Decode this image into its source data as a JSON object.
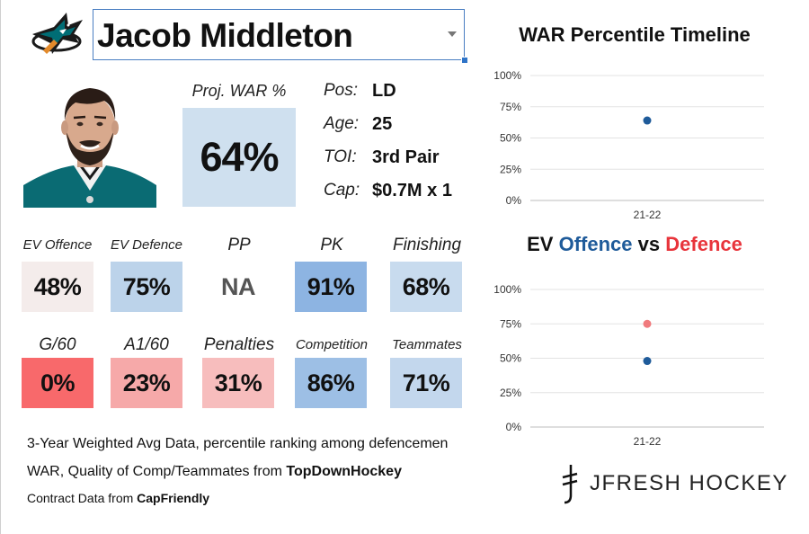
{
  "header": {
    "player_name": "Jacob Middleton",
    "logo_icon": "sharks-logo-icon"
  },
  "projection": {
    "label": "Proj. WAR %",
    "value": "64%",
    "color": "#cfe0ef"
  },
  "info": [
    {
      "key": "Pos:",
      "value": "LD"
    },
    {
      "key": "Age:",
      "value": "25"
    },
    {
      "key": "TOI:",
      "value": "3rd Pair"
    },
    {
      "key": "Cap:",
      "value": "$0.7M x 1"
    }
  ],
  "stats_row1": [
    {
      "label": "EV Offence",
      "value": "48%",
      "color": "#f4eceb"
    },
    {
      "label": "EV Defence",
      "value": "75%",
      "color": "#bcd3ea"
    },
    {
      "label": "PP",
      "value": "NA",
      "color": "#ffffff"
    },
    {
      "label": "PK",
      "value": "91%",
      "color": "#8db4e2"
    },
    {
      "label": "Finishing",
      "value": "68%",
      "color": "#c8dbee"
    }
  ],
  "stats_row2": [
    {
      "label": "G/60",
      "value": "0%",
      "color": "#f8696b"
    },
    {
      "label": "A1/60",
      "value": "23%",
      "color": "#f6a9a9"
    },
    {
      "label": "Penalties",
      "value": "31%",
      "color": "#f7bdbd"
    },
    {
      "label": "Competition",
      "value": "86%",
      "color": "#9dbfe5"
    },
    {
      "label": "Teammates",
      "value": "71%",
      "color": "#c3d7ed"
    }
  ],
  "notes": {
    "line1": "3-Year Weighted Avg Data, percentile ranking among defencemen",
    "line2_prefix": "WAR, Quality of Comp/Teammates from ",
    "line2_source": "TopDownHockey",
    "line3_prefix": "Contract Data from ",
    "line3_source": "CapFriendly"
  },
  "brand": {
    "text": "JFRESH HOCKEY"
  },
  "colors": {
    "offence_blue": "#1f5b9a",
    "defence_red": "#e8343b",
    "offence_dot": "#1f5b9a",
    "defence_dot": "#f07a7d"
  },
  "chart_titles": {
    "timeline": "WAR Percentile Timeline",
    "ev_word1": "EV",
    "ev_offence": "Offence",
    "ev_vs": "vs",
    "ev_defence": "Defence"
  },
  "chart_data": [
    {
      "type": "scatter",
      "title": "WAR Percentile Timeline",
      "categories": [
        "21-22"
      ],
      "series": [
        {
          "values": [
            64
          ]
        }
      ],
      "y_ticks": [
        "0%",
        "25%",
        "50%",
        "75%",
        "100%"
      ],
      "ylim": [
        0,
        100
      ],
      "grid": true
    },
    {
      "type": "scatter",
      "title": "EV Offence vs Defence",
      "categories": [
        "21-22"
      ],
      "series": [
        {
          "name": "Offence",
          "values": [
            48
          ]
        },
        {
          "name": "Defence",
          "values": [
            75
          ]
        }
      ],
      "y_ticks": [
        "0%",
        "25%",
        "50%",
        "75%",
        "100%"
      ],
      "ylim": [
        0,
        100
      ],
      "grid": true
    }
  ]
}
